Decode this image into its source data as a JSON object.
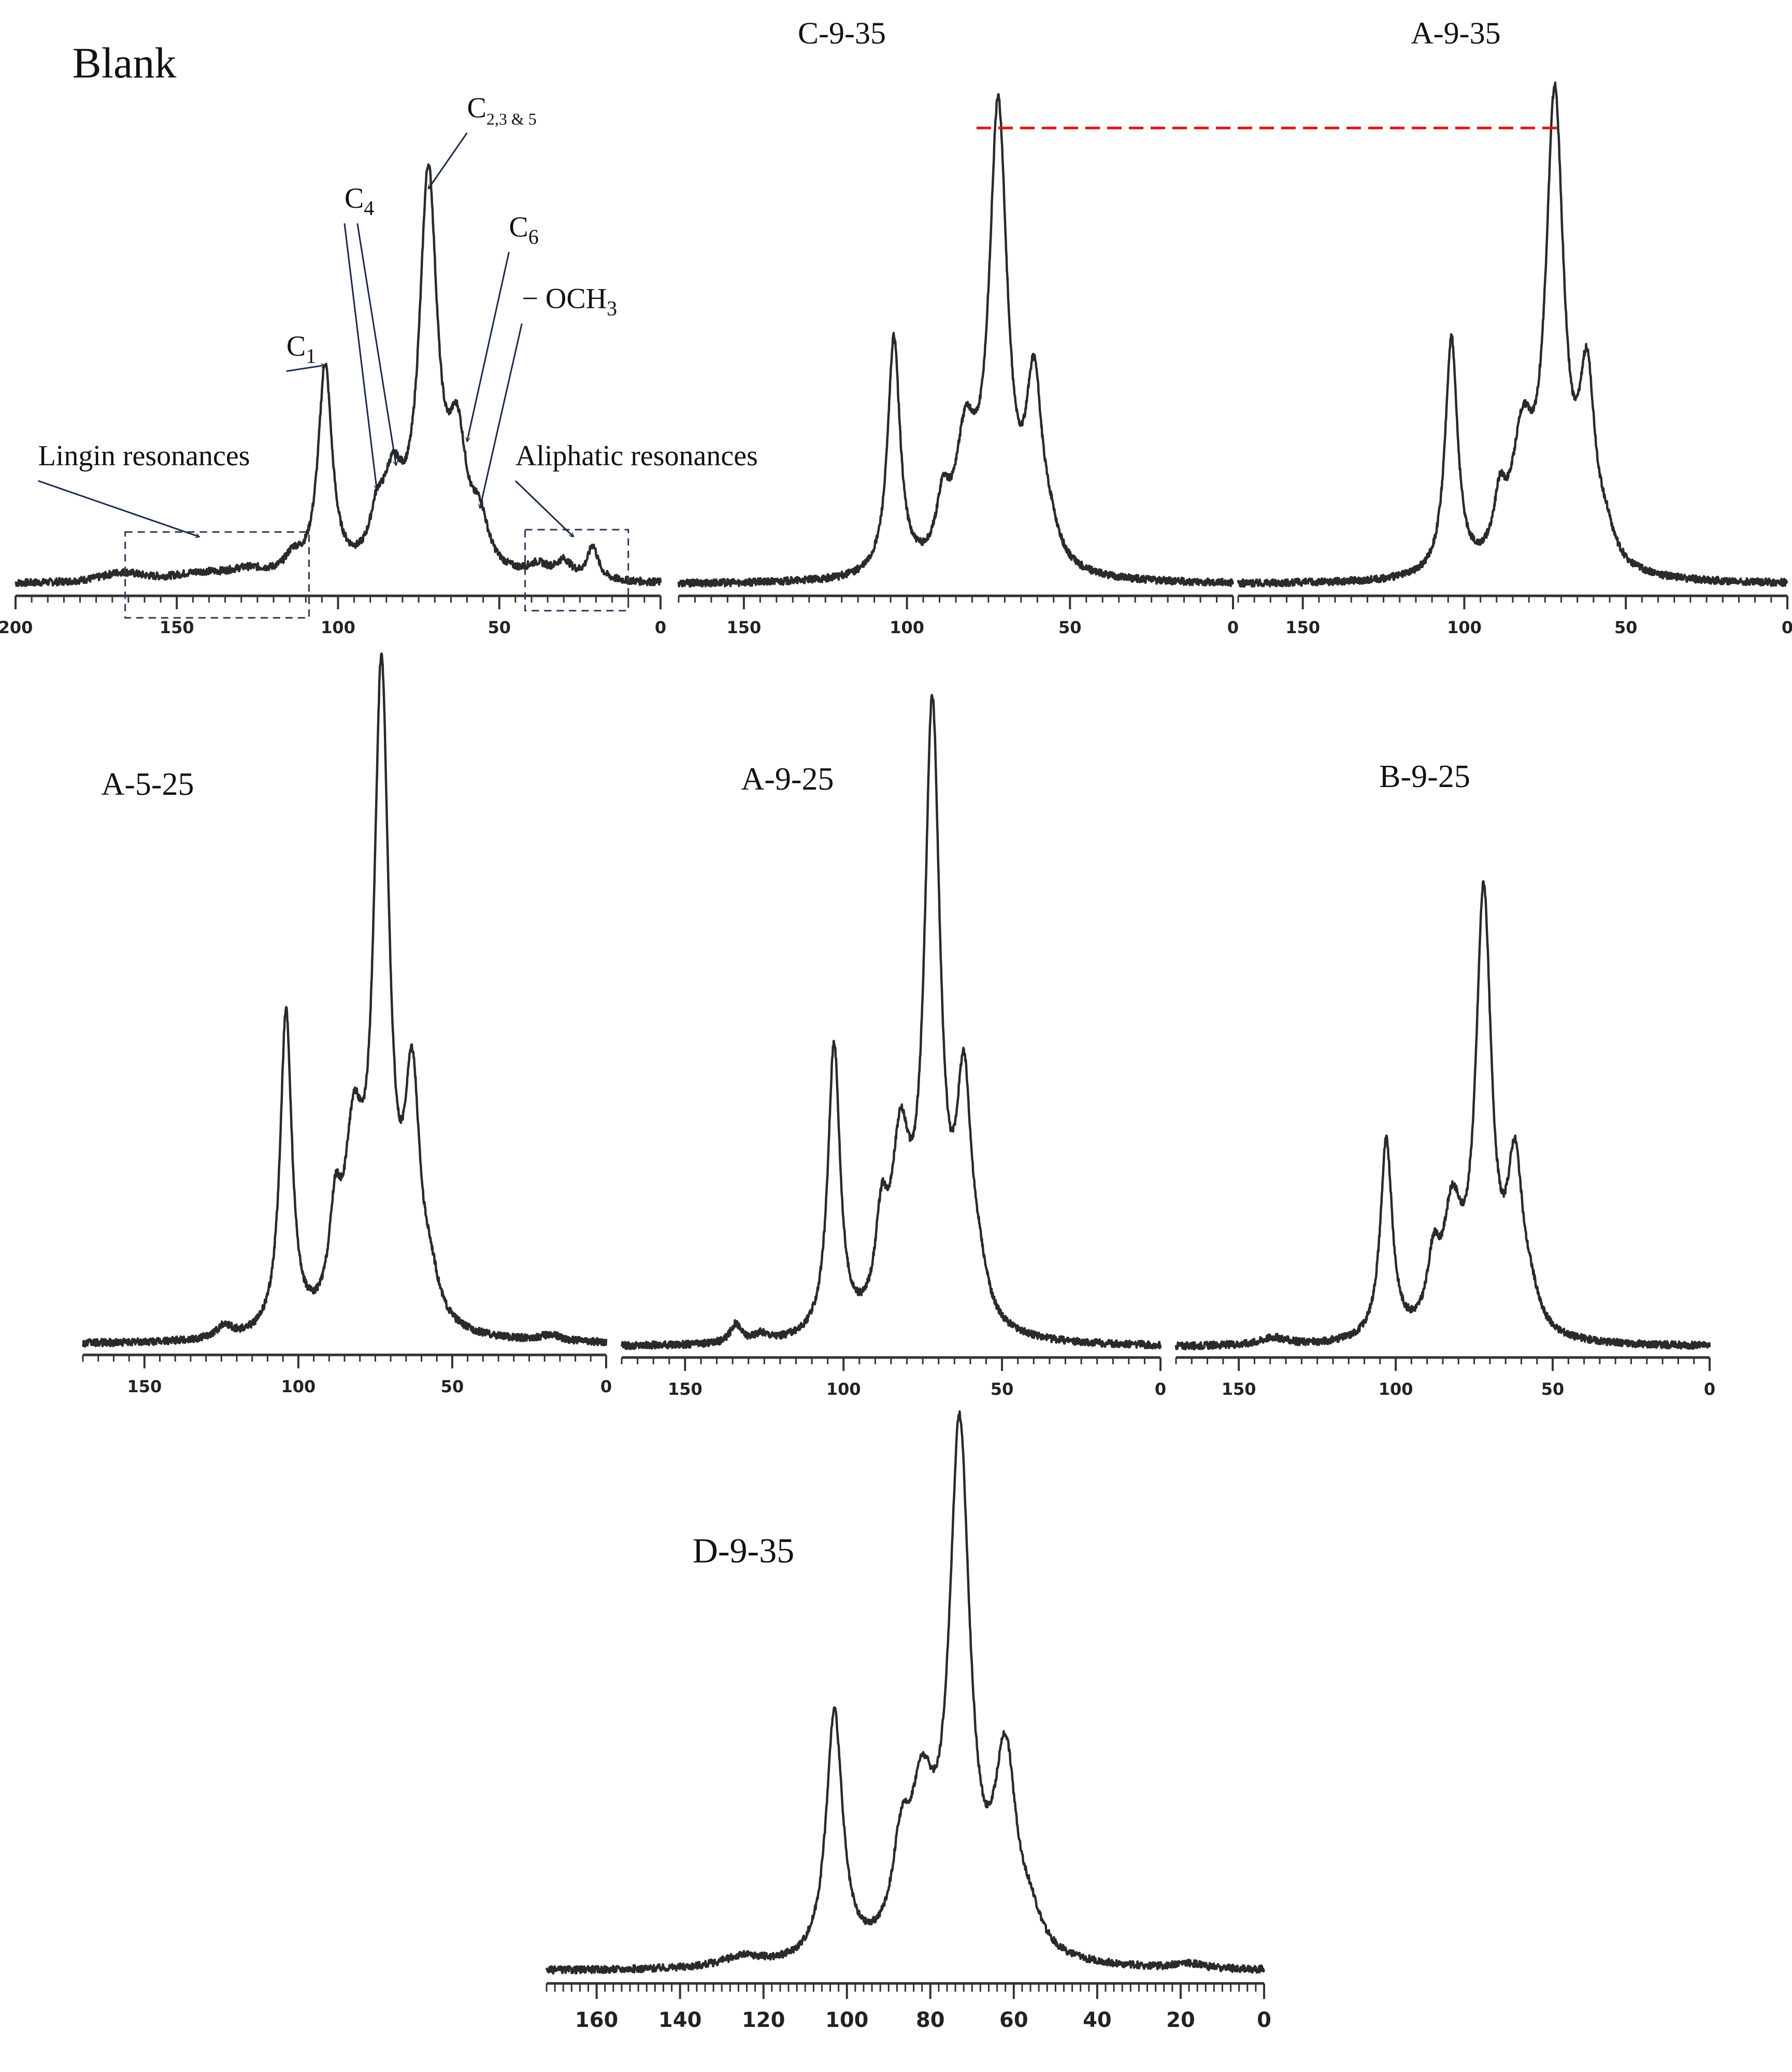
{
  "chart_data": [
    {
      "type": "line",
      "title": "Blank",
      "xlim": [
        200,
        0
      ],
      "ticks": [
        200,
        150,
        100,
        50,
        0
      ],
      "minor_step": 5,
      "peaks": [
        {
          "x": 167,
          "h": 0.02,
          "w": 8
        },
        {
          "x": 143,
          "h": 0.015,
          "w": 10
        },
        {
          "x": 128,
          "h": 0.02,
          "w": 8
        },
        {
          "x": 114,
          "h": 0.035,
          "w": 3
        },
        {
          "x": 104,
          "h": 0.44,
          "w": 2.6
        },
        {
          "x": 88,
          "h": 0.08,
          "w": 2.5
        },
        {
          "x": 83,
          "h": 0.17,
          "w": 4
        },
        {
          "x": 72,
          "h": 0.82,
          "w": 3.4
        },
        {
          "x": 63,
          "h": 0.25,
          "w": 3.5
        },
        {
          "x": 56,
          "h": 0.09,
          "w": 3
        },
        {
          "x": 38,
          "h": 0.025,
          "w": 4
        },
        {
          "x": 30,
          "h": 0.035,
          "w": 3
        },
        {
          "x": 21,
          "h": 0.07,
          "w": 2
        }
      ],
      "annotations": [
        {
          "text": "C",
          "sub": "2,3 & 5",
          "tx": 60,
          "ty": 0.98,
          "ax": 72,
          "ay": 0.83
        },
        {
          "text": "C",
          "sub": "4",
          "tx": 98,
          "ty": 0.79,
          "ax": 88,
          "ay": 0.2
        },
        {
          "text": "",
          "sub": "",
          "tx": 94,
          "ty": 0.79,
          "ax": 82,
          "ay": 0.25
        },
        {
          "text": "C",
          "sub": "6",
          "tx": 47,
          "ty": 0.73,
          "ax": 60,
          "ay": 0.3
        },
        {
          "text": "C",
          "sub": "1",
          "tx": 116,
          "ty": 0.48,
          "ax": 104,
          "ay": 0.46
        },
        {
          "text": "− OCH",
          "sub": "3",
          "tx": 43,
          "ty": 0.58,
          "ax": 56,
          "ay": 0.16
        },
        {
          "text": "Lingin resonances",
          "sub": "",
          "tx": 193,
          "ty": 0.25,
          "ax": 143,
          "ay": 0.1
        },
        {
          "text": "Aliphatic resonances",
          "sub": "",
          "tx": 45,
          "ty": 0.25,
          "ax": 27,
          "ay": 0.1
        }
      ],
      "boxes": [
        {
          "x1": 166,
          "x2": 109,
          "y1": 0.11,
          "y2": -0.07
        },
        {
          "x1": 42,
          "x2": 10,
          "y1": 0.115,
          "y2": -0.055
        }
      ]
    },
    {
      "type": "line",
      "title": "C-9-35",
      "xlim": [
        170,
        0
      ],
      "ticks": [
        150,
        100,
        50,
        0
      ],
      "minor_step": 5,
      "peaks": [
        {
          "x": 104,
          "h": 0.52,
          "w": 2.3
        },
        {
          "x": 89,
          "h": 0.12,
          "w": 2.3
        },
        {
          "x": 82,
          "h": 0.26,
          "w": 4
        },
        {
          "x": 72,
          "h": 1.0,
          "w": 3.4
        },
        {
          "x": 61,
          "h": 0.39,
          "w": 3.0
        },
        {
          "x": 56,
          "h": 0.05,
          "w": 3
        }
      ]
    },
    {
      "type": "line",
      "title": "A-9-35",
      "xlim": [
        170,
        0
      ],
      "ticks": [
        150,
        100,
        50,
        0
      ],
      "minor_step": 5,
      "peaks": [
        {
          "x": 104,
          "h": 0.52,
          "w": 2.3
        },
        {
          "x": 89,
          "h": 0.12,
          "w": 2.3
        },
        {
          "x": 82,
          "h": 0.26,
          "w": 4
        },
        {
          "x": 72,
          "h": 1.02,
          "w": 3.4
        },
        {
          "x": 62,
          "h": 0.39,
          "w": 3.0
        },
        {
          "x": 56,
          "h": 0.05,
          "w": 3
        }
      ]
    },
    {
      "type": "line",
      "title": "A-5-25",
      "xlim": [
        170,
        0
      ],
      "ticks": [
        150,
        100,
        50,
        0
      ],
      "minor_step": 5,
      "peaks": [
        {
          "x": 124,
          "h": 0.02,
          "w": 3
        },
        {
          "x": 104,
          "h": 0.5,
          "w": 2.3
        },
        {
          "x": 88,
          "h": 0.14,
          "w": 2.3
        },
        {
          "x": 82,
          "h": 0.26,
          "w": 3.6
        },
        {
          "x": 73,
          "h": 1.0,
          "w": 3.0
        },
        {
          "x": 63,
          "h": 0.36,
          "w": 3.0
        },
        {
          "x": 57,
          "h": 0.05,
          "w": 3
        },
        {
          "x": 18,
          "h": 0.01,
          "w": 4
        }
      ]
    },
    {
      "type": "line",
      "title": "A-9-25",
      "xlim": [
        170,
        0
      ],
      "ticks": [
        150,
        100,
        50,
        0
      ],
      "minor_step": 5,
      "peaks": [
        {
          "x": 134,
          "h": 0.03,
          "w": 2
        },
        {
          "x": 126,
          "h": 0.012,
          "w": 3
        },
        {
          "x": 103,
          "h": 0.47,
          "w": 2.3
        },
        {
          "x": 88,
          "h": 0.14,
          "w": 2.3
        },
        {
          "x": 82,
          "h": 0.27,
          "w": 3.6
        },
        {
          "x": 72,
          "h": 0.98,
          "w": 3.0
        },
        {
          "x": 62,
          "h": 0.37,
          "w": 3.0
        },
        {
          "x": 57,
          "h": 0.05,
          "w": 3
        }
      ]
    },
    {
      "type": "line",
      "title": "B-9-25",
      "xlim": [
        170,
        0
      ],
      "ticks": [
        150,
        100,
        50,
        0
      ],
      "minor_step": 5,
      "peaks": [
        {
          "x": 139,
          "h": 0.012,
          "w": 5
        },
        {
          "x": 103,
          "h": 0.32,
          "w": 2.3
        },
        {
          "x": 88,
          "h": 0.1,
          "w": 2.3
        },
        {
          "x": 82,
          "h": 0.18,
          "w": 3.6
        },
        {
          "x": 72,
          "h": 0.7,
          "w": 3.0
        },
        {
          "x": 62,
          "h": 0.26,
          "w": 3.0
        },
        {
          "x": 57,
          "h": 0.04,
          "w": 3
        }
      ]
    },
    {
      "type": "line",
      "title": "D-9-35",
      "xlim": [
        172,
        0
      ],
      "ticks": [
        160,
        140,
        120,
        100,
        80,
        60,
        40,
        20,
        0
      ],
      "minor_step": 2,
      "peaks": [
        {
          "x": 125,
          "h": 0.02,
          "w": 6
        },
        {
          "x": 103,
          "h": 0.48,
          "w": 2.4
        },
        {
          "x": 87,
          "h": 0.16,
          "w": 2.5
        },
        {
          "x": 82,
          "h": 0.27,
          "w": 3.6
        },
        {
          "x": 73,
          "h": 1.0,
          "w": 3.0
        },
        {
          "x": 62,
          "h": 0.37,
          "w": 3.2
        },
        {
          "x": 56,
          "h": 0.05,
          "w": 3
        },
        {
          "x": 18,
          "h": 0.01,
          "w": 4
        }
      ]
    }
  ]
}
